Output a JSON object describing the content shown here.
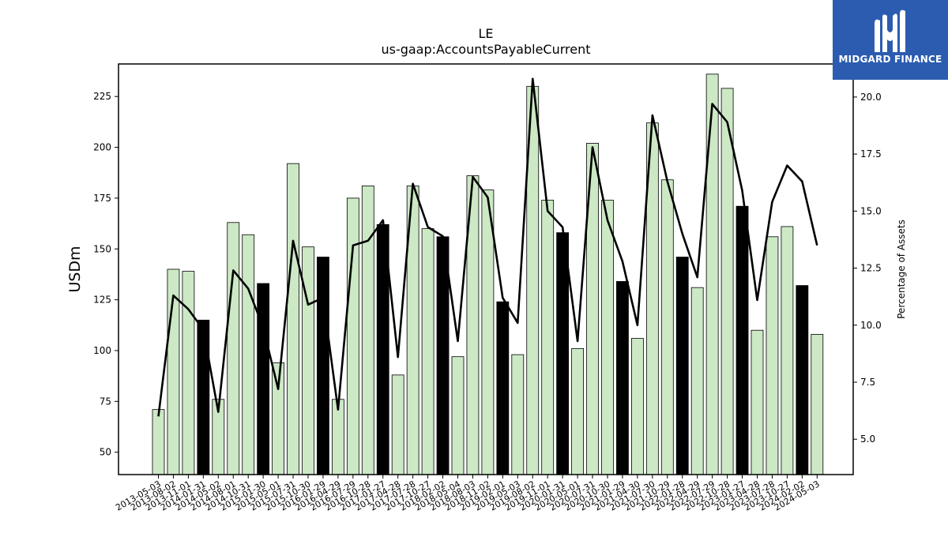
{
  "logo": {
    "text": "MIDGARD FINANCE",
    "icon": "midgard-m-logo-icon",
    "background": "#2b5cb0"
  },
  "chart_data": {
    "type": "bar",
    "title": "LE",
    "subtitle": "us-gaap:AccountsPayableCurrent",
    "ylabel": "USDm",
    "y2label": "Percentage of Assets",
    "ylim": [
      39,
      241
    ],
    "y2lim": [
      3.45,
      21.45
    ],
    "yticks": [
      50,
      75,
      100,
      125,
      150,
      175,
      200,
      225
    ],
    "y2ticks": [
      5.0,
      7.5,
      10.0,
      12.5,
      15.0,
      17.5,
      20.0
    ],
    "grid": false,
    "bar_color": "#cce8c5",
    "highlight_color": "#000000",
    "line_color": "#000000",
    "categories": [
      "2013-05-03",
      "2013-08-02",
      "2013-11-01",
      "2014-01-31",
      "2014-05-02",
      "2014-08-01",
      "2014-10-31",
      "2015-01-30",
      "2015-05-01",
      "2015-07-31",
      "2015-10-30",
      "2016-01-29",
      "2016-04-29",
      "2016-07-29",
      "2016-10-28",
      "2017-01-27",
      "2017-04-28",
      "2017-07-28",
      "2017-10-27",
      "2018-02-02",
      "2018-05-04",
      "2018-08-03",
      "2018-11-02",
      "2019-02-01",
      "2019-05-03",
      "2019-08-02",
      "2019-11-01",
      "2020-01-31",
      "2020-05-01",
      "2020-07-31",
      "2020-10-30",
      "2021-01-29",
      "2021-04-30",
      "2021-07-30",
      "2021-10-29",
      "2022-01-28",
      "2022-04-29",
      "2022-07-29",
      "2022-10-28",
      "2023-01-27",
      "2023-04-28",
      "2023-07-28",
      "2023-10-27",
      "2024-02-02",
      "2024-05-03"
    ],
    "values": [
      71,
      140,
      139,
      115,
      76,
      163,
      157,
      133,
      94,
      192,
      151,
      146,
      76,
      175,
      181,
      162,
      88,
      181,
      160,
      156,
      97,
      186,
      179,
      124,
      98,
      230,
      174,
      158,
      101,
      202,
      174,
      134,
      106,
      212,
      184,
      146,
      131,
      236,
      229,
      171,
      110,
      156,
      161,
      132,
      108
    ],
    "highlight": [
      false,
      false,
      false,
      true,
      false,
      false,
      false,
      true,
      false,
      false,
      false,
      true,
      false,
      false,
      false,
      true,
      false,
      false,
      false,
      true,
      false,
      false,
      false,
      true,
      false,
      false,
      false,
      true,
      false,
      false,
      false,
      true,
      false,
      false,
      false,
      true,
      false,
      false,
      false,
      true,
      false,
      false,
      false,
      true,
      false
    ],
    "series": [
      {
        "type": "line",
        "axis": "right",
        "values": [
          6.0,
          11.3,
          10.7,
          9.8,
          6.2,
          12.4,
          11.6,
          9.9,
          7.2,
          13.7,
          10.9,
          11.2,
          6.3,
          13.5,
          13.7,
          14.6,
          8.6,
          16.2,
          14.3,
          13.9,
          9.3,
          16.5,
          15.6,
          11.2,
          10.1,
          20.8,
          15.0,
          14.3,
          9.3,
          17.8,
          14.6,
          12.8,
          10.0,
          19.2,
          16.3,
          14.0,
          12.1,
          19.7,
          18.9,
          15.9,
          11.1,
          15.4,
          17.0,
          16.3,
          13.5
        ]
      }
    ]
  }
}
